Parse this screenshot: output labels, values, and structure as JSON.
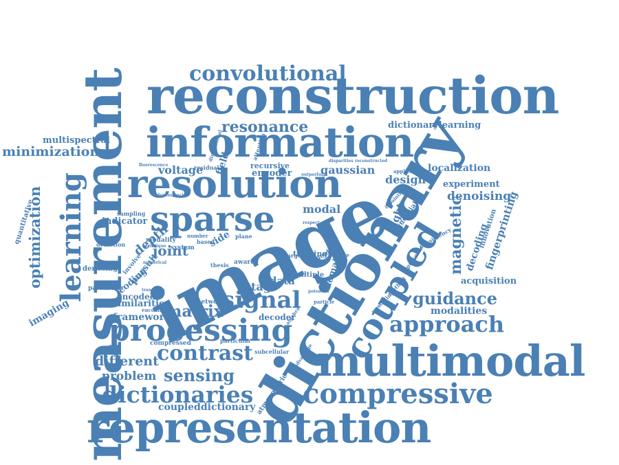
{
  "cloud": {
    "color": "#4a80b4",
    "words": {
      "reconstruction": "reconstruction",
      "measurement": "measurement",
      "image": "image",
      "dictionary": "dictionary",
      "information": "information",
      "resolution": "resolution",
      "multimodal": "multimodal",
      "representation": "representation",
      "sparse": "sparse",
      "processing": "processing",
      "coupled": "coupled",
      "convolutional": "convolutional",
      "learning": "learning",
      "compressive": "compressive",
      "dictionaries": "dictionaries",
      "approach": "approach",
      "signal": "signal",
      "contrast": "contrast",
      "guidance": "guidance",
      "resonance": "resonance",
      "sensing": "sensing",
      "matrix": "matrix",
      "optimization": "optimization",
      "minimization": "minimization",
      "multispectral": "multispectral",
      "dictionarylearning": "dictionarylearning",
      "localization": "localization",
      "experiment": "experiment",
      "denoising": "denoising",
      "magnetic": "magnetic",
      "fingerprinting": "fingerprinting",
      "decoding": "decoding",
      "acquisition": "acquisition",
      "modalities": "modalities",
      "different": "different",
      "problem": "problem",
      "coupleddictionary": "coupleddictionary",
      "framework": "framework",
      "similarities": "similarities",
      "encoded": "encoded",
      "coding": "coding",
      "pursuit": "pursuit",
      "indicator": "indicator",
      "depth": "depth",
      "joint": "joint",
      "voltage": "voltage",
      "field": "field",
      "encoder": "encoder",
      "recursive": "recursive",
      "gaussian": "gaussian",
      "design": "design",
      "modal": "modal",
      "light": "light",
      "stage": "stage",
      "data": "data",
      "domain": "domain",
      "side": "side",
      "imaging": "imaging",
      "quantitative": "quantitative",
      "atmospheric": "atmospheric",
      "compressed": "compressed",
      "decoder": "decoder",
      "training": "training",
      "multiple": "multiple",
      "sequential": "sequential",
      "network": "network",
      "denosing": "denosing",
      "parameter": "parameter",
      "detection": "detection",
      "involve": "involve",
      "sampling": "sampling",
      "modality": "modality",
      "system": "system",
      "residual": "residual",
      "fluorescence": "fluorescence",
      "attention": "attention",
      "dimensional": "dimensional",
      "inpainting": "inpainting",
      "application": "application",
      "processes": "processes",
      "consistency": "consistency",
      "induced": "induced",
      "model": "model",
      "target": "target",
      "aware": "aware",
      "plane": "plane",
      "thesis": "thesis",
      "based": "based",
      "number": "number",
      "encoding": "encoding",
      "transform": "transform",
      "numerical": "numerical",
      "particular": "particular",
      "subcellular": "subcellular",
      "advantage": "advantage",
      "upscaling": "upscaling",
      "method": "method",
      "particle": "particle",
      "algebra": "algebra",
      "potential": "potential",
      "matrice": "matrice",
      "respect": "respect",
      "technique": "technique",
      "dependencies": "dependencies",
      "disparities": "disparities",
      "reconstructed": "reconstructed",
      "outperform": "outperform",
      "innovation": "innovation"
    }
  }
}
